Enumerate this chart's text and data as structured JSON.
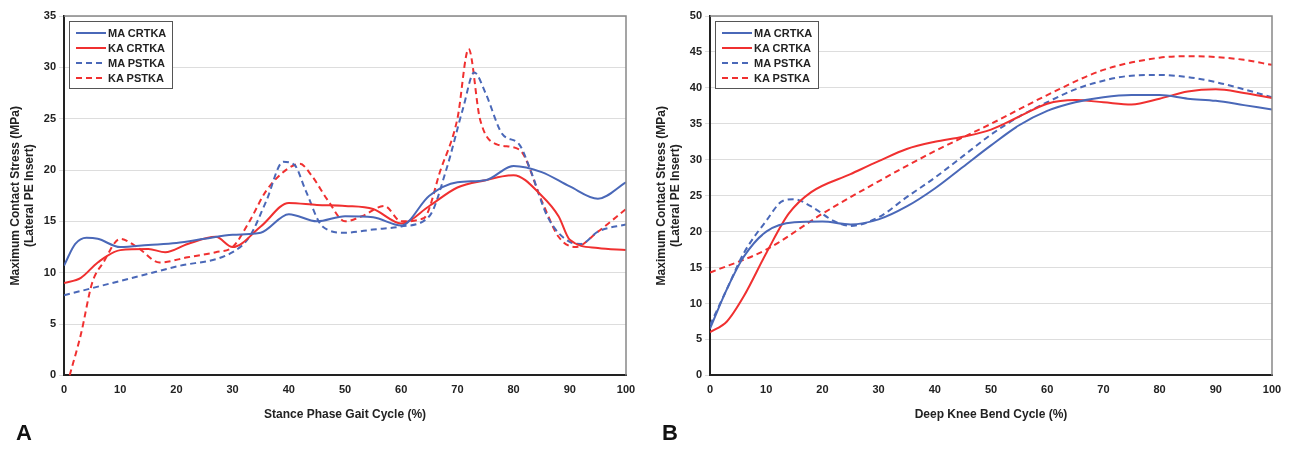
{
  "chart_data": [
    {
      "type": "line",
      "xlabel": "Stance Phase Gait Cycle (%)",
      "ylabel": "Maximum Contact Stress (MPa)\n(Lateral PE Insert)",
      "annotations": [
        "A"
      ],
      "xlim": [
        0,
        100
      ],
      "xticks": [
        0,
        10,
        20,
        30,
        40,
        50,
        60,
        70,
        80,
        90,
        100
      ],
      "ylim": [
        0,
        35
      ],
      "yticks": [
        0,
        5,
        10,
        15,
        20,
        25,
        30,
        35
      ],
      "grid": "y",
      "legend": "top left",
      "marker": "none",
      "series": [
        {
          "name": "MA CRTKA",
          "color": "#4a68b8",
          "line_style": "solid",
          "x": [
            0,
            2,
            4,
            6,
            10,
            15,
            20,
            25,
            30,
            35,
            40,
            45,
            50,
            55,
            60,
            65,
            70,
            75,
            80,
            85,
            90,
            95,
            100
          ],
          "values": [
            10.7,
            12.8,
            13.4,
            13.3,
            12.5,
            12.7,
            12.9,
            13.3,
            13.7,
            13.9,
            15.7,
            15.0,
            15.5,
            15.4,
            14.6,
            17.5,
            18.8,
            19.0,
            20.4,
            19.8,
            18.4,
            17.2,
            18.8
          ]
        },
        {
          "name": "KA CRTKA",
          "color": "#f03030",
          "line_style": "solid",
          "x": [
            0,
            3,
            6,
            10,
            15,
            18,
            22,
            27,
            30,
            35,
            40,
            45,
            50,
            55,
            60,
            65,
            70,
            75,
            80,
            85,
            88,
            90,
            95,
            100
          ],
          "values": [
            9.0,
            9.5,
            11.0,
            12.2,
            12.3,
            12.0,
            12.8,
            13.5,
            12.5,
            14.5,
            16.8,
            16.6,
            16.5,
            16.2,
            14.8,
            16.5,
            18.3,
            19.0,
            19.5,
            17.5,
            15.5,
            13.2,
            12.4,
            12.2
          ]
        },
        {
          "name": "MA PSTKA",
          "color": "#4a68b8",
          "line_style": "dashed",
          "x": [
            0,
            10,
            20,
            30,
            33,
            36,
            39,
            41,
            43,
            46,
            50,
            55,
            60,
            65,
            68,
            71,
            73,
            75,
            78,
            81,
            83,
            86,
            90,
            92,
            95,
            100
          ],
          "values": [
            7.8,
            9.2,
            10.6,
            12.0,
            13.5,
            17.0,
            20.8,
            20.5,
            18.0,
            14.5,
            13.9,
            14.2,
            14.5,
            15.5,
            20.0,
            26.0,
            29.5,
            27.5,
            23.5,
            22.5,
            20.0,
            15.5,
            13.0,
            12.8,
            14.0,
            14.7
          ]
        },
        {
          "name": "KA PSTKA",
          "color": "#f03030",
          "line_style": "dashed",
          "x": [
            1,
            3,
            5,
            7,
            10,
            13,
            17,
            22,
            27,
            30,
            33,
            36,
            40,
            42,
            44,
            47,
            50,
            53,
            57,
            60,
            64,
            67,
            70,
            72,
            74,
            77,
            81,
            85,
            88,
            91,
            95,
            100
          ],
          "values": [
            0,
            4,
            9,
            11,
            13.3,
            12.5,
            11,
            11.5,
            12,
            12.5,
            15,
            18,
            20.2,
            20.6,
            19.5,
            17,
            15,
            15.5,
            16.5,
            15,
            15.3,
            20,
            25,
            31.8,
            25,
            22.5,
            22,
            17,
            13.5,
            12.5,
            14,
            16.2
          ]
        }
      ]
    },
    {
      "type": "line",
      "xlabel": "Deep Knee Bend Cycle (%)",
      "ylabel": "Maximum Contact Stress (MPa)\n(Lateral PE Insert)",
      "annotations": [
        "B"
      ],
      "xlim": [
        0,
        100
      ],
      "xticks": [
        0,
        10,
        20,
        30,
        40,
        50,
        60,
        70,
        80,
        90,
        100
      ],
      "ylim": [
        0,
        50
      ],
      "yticks": [
        0,
        5,
        10,
        15,
        20,
        25,
        30,
        35,
        40,
        45,
        50
      ],
      "grid": "y",
      "legend": "top left",
      "marker": "none",
      "series": [
        {
          "name": "MA CRTKA",
          "color": "#4a68b8",
          "line_style": "solid",
          "x": [
            0,
            3,
            6,
            10,
            15,
            20,
            25,
            30,
            35,
            40,
            45,
            50,
            55,
            60,
            65,
            70,
            75,
            80,
            85,
            90,
            95,
            100
          ],
          "values": [
            6.5,
            12,
            16.5,
            20,
            21.3,
            21.4,
            21,
            21.7,
            23.5,
            26,
            29,
            32,
            34.8,
            36.8,
            38,
            38.7,
            39,
            39,
            38.5,
            38.2,
            37.6,
            37
          ]
        },
        {
          "name": "KA CRTKA",
          "color": "#f03030",
          "line_style": "solid",
          "x": [
            0,
            3,
            6,
            10,
            14,
            18,
            25,
            30,
            35,
            40,
            45,
            50,
            55,
            60,
            65,
            70,
            75,
            80,
            85,
            90,
            95,
            100
          ],
          "values": [
            6,
            7.5,
            11,
            17,
            22.5,
            25.5,
            28,
            29.8,
            31.5,
            32.5,
            33.2,
            34.2,
            36,
            37.8,
            38.3,
            38,
            37.7,
            38.5,
            39.5,
            39.8,
            39.3,
            38.6
          ]
        },
        {
          "name": "MA PSTKA",
          "color": "#4a68b8",
          "line_style": "dashed",
          "x": [
            0,
            3,
            6,
            10,
            13,
            15,
            18,
            22,
            25,
            30,
            35,
            40,
            45,
            50,
            55,
            60,
            65,
            70,
            75,
            80,
            85,
            90,
            95,
            100
          ],
          "values": [
            7,
            12,
            17,
            21.5,
            24.3,
            24.5,
            23.5,
            21.5,
            20.8,
            22,
            24.8,
            27.5,
            30.5,
            33.5,
            36,
            38,
            39.8,
            41,
            41.7,
            41.8,
            41.5,
            40.8,
            39.8,
            38.7
          ]
        },
        {
          "name": "KA PSTKA",
          "color": "#f03030",
          "line_style": "dashed",
          "x": [
            0,
            10,
            20,
            30,
            40,
            50,
            60,
            70,
            80,
            85,
            90,
            95,
            100
          ],
          "values": [
            14.3,
            17.5,
            22.5,
            27,
            31.2,
            35,
            39,
            42.5,
            44.2,
            44.4,
            44.3,
            43.9,
            43.2
          ]
        }
      ]
    }
  ]
}
